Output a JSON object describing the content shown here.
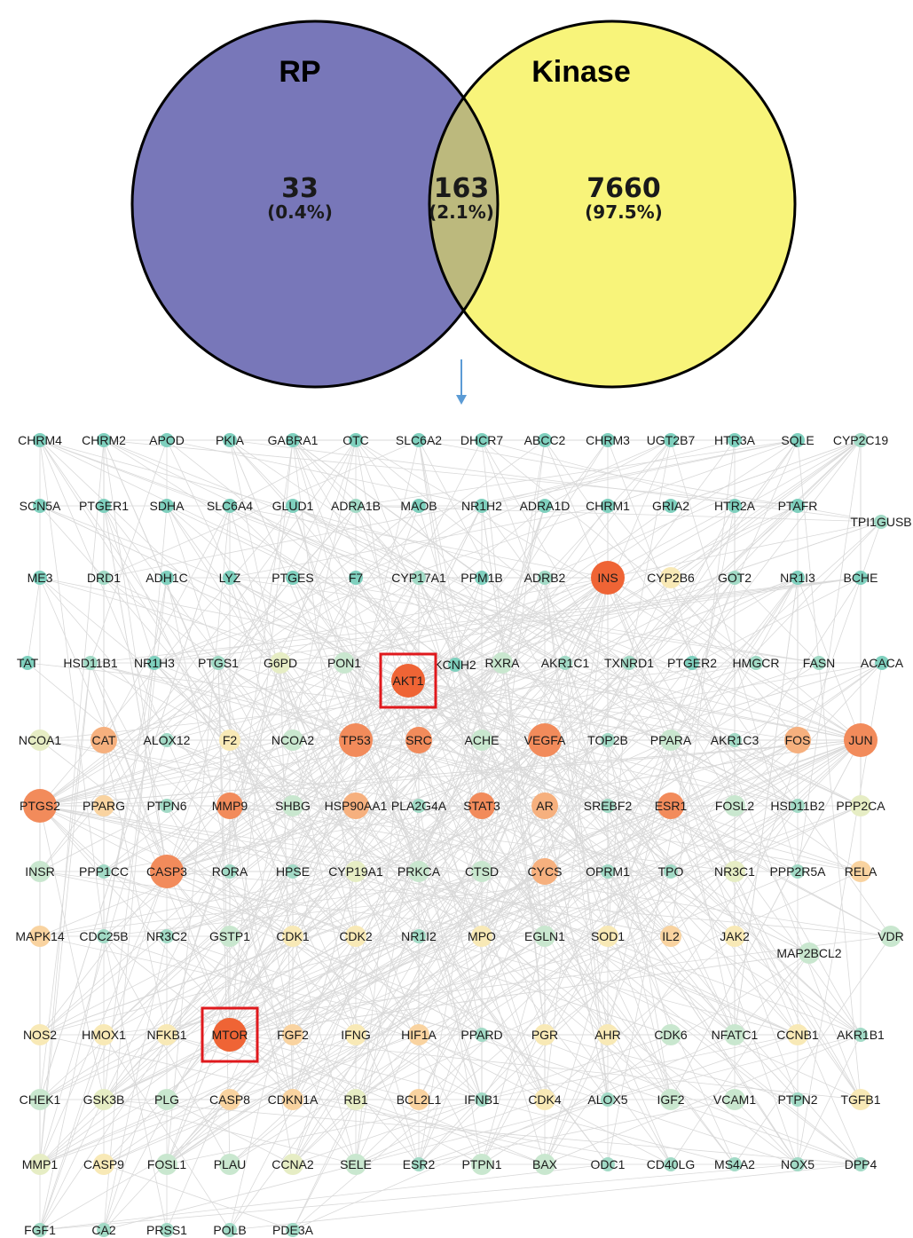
{
  "venn": {
    "left": {
      "label": "RP",
      "count": "33",
      "percent": "(0.4%)",
      "color": "#7877b9"
    },
    "right": {
      "label": "Kinase",
      "count": "7660",
      "percent": "(97.5%)",
      "color": "#f8f47a"
    },
    "overlap": {
      "count": "163",
      "percent": "(2.1%)",
      "color": "#bcb97d"
    },
    "stroke": "#000000"
  },
  "arrow_color": "#5b9bd5",
  "network": {
    "edge_color": "#d9d9d9",
    "highlight_box_color": "#e0191d",
    "highlighted": [
      "AKT1",
      "MTOR"
    ],
    "colors": {
      "c1": "#ef6435",
      "c2": "#f28b5b",
      "c3": "#f6b07e",
      "c4": "#f9d3a0",
      "c5": "#f8e9b6",
      "c6": "#e6edc4",
      "c7": "#c9e7cf",
      "c8": "#a2dac6",
      "c9": "#7fd0be"
    },
    "nodes": [
      {
        "label": "CHRM4",
        "c": "c9"
      },
      {
        "label": "CHRM2",
        "c": "c9"
      },
      {
        "label": "APOD",
        "c": "c9"
      },
      {
        "label": "PKIA",
        "c": "c9"
      },
      {
        "label": "GABRA1",
        "c": "c9"
      },
      {
        "label": "OTC",
        "c": "c9"
      },
      {
        "label": "SLC6A2",
        "c": "c9"
      },
      {
        "label": "DHCR7",
        "c": "c9"
      },
      {
        "label": "ABCC2",
        "c": "c9"
      },
      {
        "label": "CHRM3",
        "c": "c9"
      },
      {
        "label": "UGT2B7",
        "c": "c9"
      },
      {
        "label": "HTR3A",
        "c": "c9"
      },
      {
        "label": "SQLE",
        "c": "c9"
      },
      {
        "label": "CYP2C19",
        "c": "c8"
      },
      {
        "label": "SCN5A",
        "c": "c9"
      },
      {
        "label": "PTGER1",
        "c": "c9"
      },
      {
        "label": "SDHA",
        "c": "c9"
      },
      {
        "label": "SLC6A4",
        "c": "c9"
      },
      {
        "label": "GLUD1",
        "c": "c9"
      },
      {
        "label": "ADRA1B",
        "c": "c8"
      },
      {
        "label": "MAOB",
        "c": "c9"
      },
      {
        "label": "NR1H2",
        "c": "c9"
      },
      {
        "label": "ADRA1D",
        "c": "c9"
      },
      {
        "label": "CHRM1",
        "c": "c9"
      },
      {
        "label": "GRIA2",
        "c": "c9"
      },
      {
        "label": "HTR2A",
        "c": "c9"
      },
      {
        "label": "PTAFR",
        "c": "c9"
      },
      {
        "label": "TPI1GUSB",
        "c": "c8"
      },
      {
        "label": "ME3",
        "c": "c9"
      },
      {
        "label": "DRD1",
        "c": "c8"
      },
      {
        "label": "ADH1C",
        "c": "c9"
      },
      {
        "label": "LYZ",
        "c": "c9"
      },
      {
        "label": "PTGES",
        "c": "c9"
      },
      {
        "label": "F7",
        "c": "c9"
      },
      {
        "label": "CYP17A1",
        "c": "c8"
      },
      {
        "label": "PPM1B",
        "c": "c9"
      },
      {
        "label": "ADRB2",
        "c": "c8"
      },
      {
        "label": "INS",
        "c": "c1",
        "big": true
      },
      {
        "label": "CYP2B6",
        "c": "c5"
      },
      {
        "label": "GOT2",
        "c": "c8"
      },
      {
        "label": "NR1I3",
        "c": "c9"
      },
      {
        "label": "BCHE",
        "c": "c9"
      },
      {
        "label": "TAT",
        "c": "c9"
      },
      {
        "label": "HSD11B1",
        "c": "c8"
      },
      {
        "label": "NR1H3",
        "c": "c9"
      },
      {
        "label": "PTGS1",
        "c": "c8"
      },
      {
        "label": "G6PD",
        "c": "c6"
      },
      {
        "label": "PON1",
        "c": "c7"
      },
      {
        "label": "AKT1",
        "c": "c1",
        "big": true
      },
      {
        "label": "KCNH2",
        "c": "c9"
      },
      {
        "label": "RXRA",
        "c": "c7"
      },
      {
        "label": "AKR1C1",
        "c": "c8"
      },
      {
        "label": "TXNRD1",
        "c": "c8"
      },
      {
        "label": "PTGER2",
        "c": "c9"
      },
      {
        "label": "HMGCR",
        "c": "c8"
      },
      {
        "label": "FASN",
        "c": "c8"
      },
      {
        "label": "ACACA",
        "c": "c9"
      },
      {
        "label": "NCOA1",
        "c": "c6"
      },
      {
        "label": "CAT",
        "c": "c3"
      },
      {
        "label": "ALOX12",
        "c": "c8"
      },
      {
        "label": "F2",
        "c": "c5"
      },
      {
        "label": "NCOA2",
        "c": "c7"
      },
      {
        "label": "TP53",
        "c": "c2",
        "big": true
      },
      {
        "label": "SRC",
        "c": "c2"
      },
      {
        "label": "ACHE",
        "c": "c7"
      },
      {
        "label": "VEGFA",
        "c": "c2",
        "big": true
      },
      {
        "label": "TOP2B",
        "c": "c8"
      },
      {
        "label": "PPARA",
        "c": "c7"
      },
      {
        "label": "AKR1C3",
        "c": "c8"
      },
      {
        "label": "FOS",
        "c": "c3"
      },
      {
        "label": "JUN",
        "c": "c2",
        "big": true
      },
      {
        "label": "PTGS2",
        "c": "c2",
        "big": true
      },
      {
        "label": "PPARG",
        "c": "c4"
      },
      {
        "label": "PTPN6",
        "c": "c8"
      },
      {
        "label": "MMP9",
        "c": "c2"
      },
      {
        "label": "SHBG",
        "c": "c7"
      },
      {
        "label": "HSP90AA1",
        "c": "c3"
      },
      {
        "label": "PLA2G4A",
        "c": "c8"
      },
      {
        "label": "STAT3",
        "c": "c2"
      },
      {
        "label": "AR",
        "c": "c3"
      },
      {
        "label": "SREBF2",
        "c": "c8"
      },
      {
        "label": "ESR1",
        "c": "c2"
      },
      {
        "label": "FOSL2",
        "c": "c7"
      },
      {
        "label": "HSD11B2",
        "c": "c8"
      },
      {
        "label": "PPP2CA",
        "c": "c6"
      },
      {
        "label": "INSR",
        "c": "c7"
      },
      {
        "label": "PPP1CC",
        "c": "c8"
      },
      {
        "label": "CASP3",
        "c": "c2",
        "big": true
      },
      {
        "label": "RORA",
        "c": "c8"
      },
      {
        "label": "HPSE",
        "c": "c8"
      },
      {
        "label": "CYP19A1",
        "c": "c6"
      },
      {
        "label": "PRKCA",
        "c": "c7"
      },
      {
        "label": "CTSD",
        "c": "c7"
      },
      {
        "label": "CYCS",
        "c": "c3"
      },
      {
        "label": "OPRM1",
        "c": "c8"
      },
      {
        "label": "TPO",
        "c": "c8"
      },
      {
        "label": "NR3C1",
        "c": "c6"
      },
      {
        "label": "PPP2R5A",
        "c": "c8"
      },
      {
        "label": "RELA",
        "c": "c4"
      },
      {
        "label": "MAPK14",
        "c": "c4"
      },
      {
        "label": "CDC25B",
        "c": "c8"
      },
      {
        "label": "NR3C2",
        "c": "c8"
      },
      {
        "label": "GSTP1",
        "c": "c7"
      },
      {
        "label": "CDK1",
        "c": "c5"
      },
      {
        "label": "CDK2",
        "c": "c5"
      },
      {
        "label": "NR1I2",
        "c": "c8"
      },
      {
        "label": "MPO",
        "c": "c5"
      },
      {
        "label": "EGLN1",
        "c": "c7"
      },
      {
        "label": "SOD1",
        "c": "c5"
      },
      {
        "label": "IL2",
        "c": "c4"
      },
      {
        "label": "JAK2",
        "c": "c5"
      },
      {
        "label": "MAP2BCL2",
        "c": "c7"
      },
      {
        "label": "VDR",
        "c": "c7"
      },
      {
        "label": "NOS2",
        "c": "c5"
      },
      {
        "label": "HMOX1",
        "c": "c5"
      },
      {
        "label": "NFKB1",
        "c": "c5"
      },
      {
        "label": "MTOR",
        "c": "c1",
        "big": true
      },
      {
        "label": "FGF2",
        "c": "c4"
      },
      {
        "label": "IFNG",
        "c": "c5"
      },
      {
        "label": "HIF1A",
        "c": "c4"
      },
      {
        "label": "PPARD",
        "c": "c8"
      },
      {
        "label": "PGR",
        "c": "c5"
      },
      {
        "label": "AHR",
        "c": "c5"
      },
      {
        "label": "CDK6",
        "c": "c7"
      },
      {
        "label": "NFATC1",
        "c": "c7"
      },
      {
        "label": "CCNB1",
        "c": "c5"
      },
      {
        "label": "AKR1B1",
        "c": "c8"
      },
      {
        "label": "CHEK1",
        "c": "c7"
      },
      {
        "label": "GSK3B",
        "c": "c6"
      },
      {
        "label": "PLG",
        "c": "c7"
      },
      {
        "label": "CASP8",
        "c": "c4"
      },
      {
        "label": "CDKN1A",
        "c": "c4"
      },
      {
        "label": "RB1",
        "c": "c6"
      },
      {
        "label": "BCL2L1",
        "c": "c4"
      },
      {
        "label": "IFNB1",
        "c": "c8"
      },
      {
        "label": "CDK4",
        "c": "c5"
      },
      {
        "label": "ALOX5",
        "c": "c8"
      },
      {
        "label": "IGF2",
        "c": "c7"
      },
      {
        "label": "VCAM1",
        "c": "c7"
      },
      {
        "label": "PTPN2",
        "c": "c8"
      },
      {
        "label": "TGFB1",
        "c": "c5"
      },
      {
        "label": "MMP1",
        "c": "c6"
      },
      {
        "label": "CASP9",
        "c": "c5"
      },
      {
        "label": "FOSL1",
        "c": "c7"
      },
      {
        "label": "PLAU",
        "c": "c7"
      },
      {
        "label": "CCNA2",
        "c": "c6"
      },
      {
        "label": "SELE",
        "c": "c7"
      },
      {
        "label": "ESR2",
        "c": "c8"
      },
      {
        "label": "PTPN1",
        "c": "c7"
      },
      {
        "label": "BAX",
        "c": "c7"
      },
      {
        "label": "ODC1",
        "c": "c8"
      },
      {
        "label": "CD40LG",
        "c": "c8"
      },
      {
        "label": "MS4A2",
        "c": "c8"
      },
      {
        "label": "NOX5",
        "c": "c8"
      },
      {
        "label": "DPP4",
        "c": "c8"
      },
      {
        "label": "FGF1",
        "c": "c8"
      },
      {
        "label": "CA2",
        "c": "c8"
      },
      {
        "label": "PRSS1",
        "c": "c8"
      },
      {
        "label": "POLB",
        "c": "c8"
      },
      {
        "label": "PDE3A",
        "c": "c8"
      }
    ]
  }
}
